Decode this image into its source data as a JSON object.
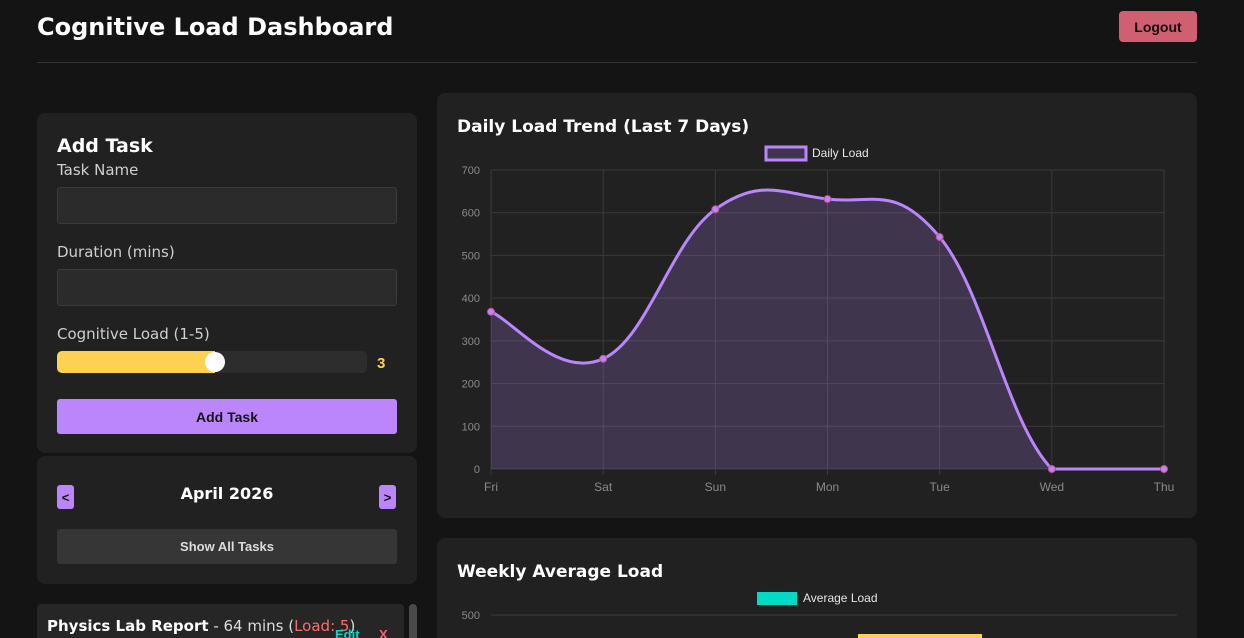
{
  "header": {
    "title": "Cognitive Load Dashboard",
    "logout_label": "Logout"
  },
  "add_task": {
    "title": "Add Task",
    "task_name_label": "Task Name",
    "task_name_value": "",
    "duration_label": "Duration (mins)",
    "duration_value": "",
    "load_label": "Cognitive Load (1-5)",
    "load_value": "3",
    "load_min": 1,
    "load_max": 5,
    "submit_label": "Add Task"
  },
  "calendar": {
    "prev_label": "<",
    "next_label": ">",
    "month": "April 2026",
    "show_all_label": "Show All Tasks"
  },
  "tasks": [
    {
      "name": "Physics Lab Report",
      "sep": " - ",
      "duration": "64 mins",
      "open": " (",
      "load": "Load: 5",
      "close": ")",
      "edit_label": "Edit",
      "delete_label": "X"
    }
  ],
  "colors": {
    "accent": "#bb86fc",
    "load": "#ffd152",
    "average": "#03dac6",
    "danger": "#d05f72"
  },
  "chart_data": [
    {
      "type": "line",
      "title": "Daily Load Trend (Last 7 Days)",
      "categories": [
        "Fri",
        "Sat",
        "Sun",
        "Mon",
        "Tue",
        "Wed",
        "Thu"
      ],
      "series": [
        {
          "name": "Daily Load",
          "values": [
            368,
            258,
            608,
            632,
            543,
            0,
            0
          ]
        }
      ],
      "ylim": [
        0,
        700
      ],
      "yticks": [
        0,
        100,
        200,
        300,
        400,
        500,
        600,
        700
      ],
      "grid": true,
      "legend": "top-center"
    },
    {
      "type": "bar",
      "title": "Weekly Average Load",
      "series": [
        {
          "name": "Average Load",
          "values": []
        }
      ],
      "yticks_visible": [
        500
      ],
      "legend": "top-center"
    }
  ]
}
